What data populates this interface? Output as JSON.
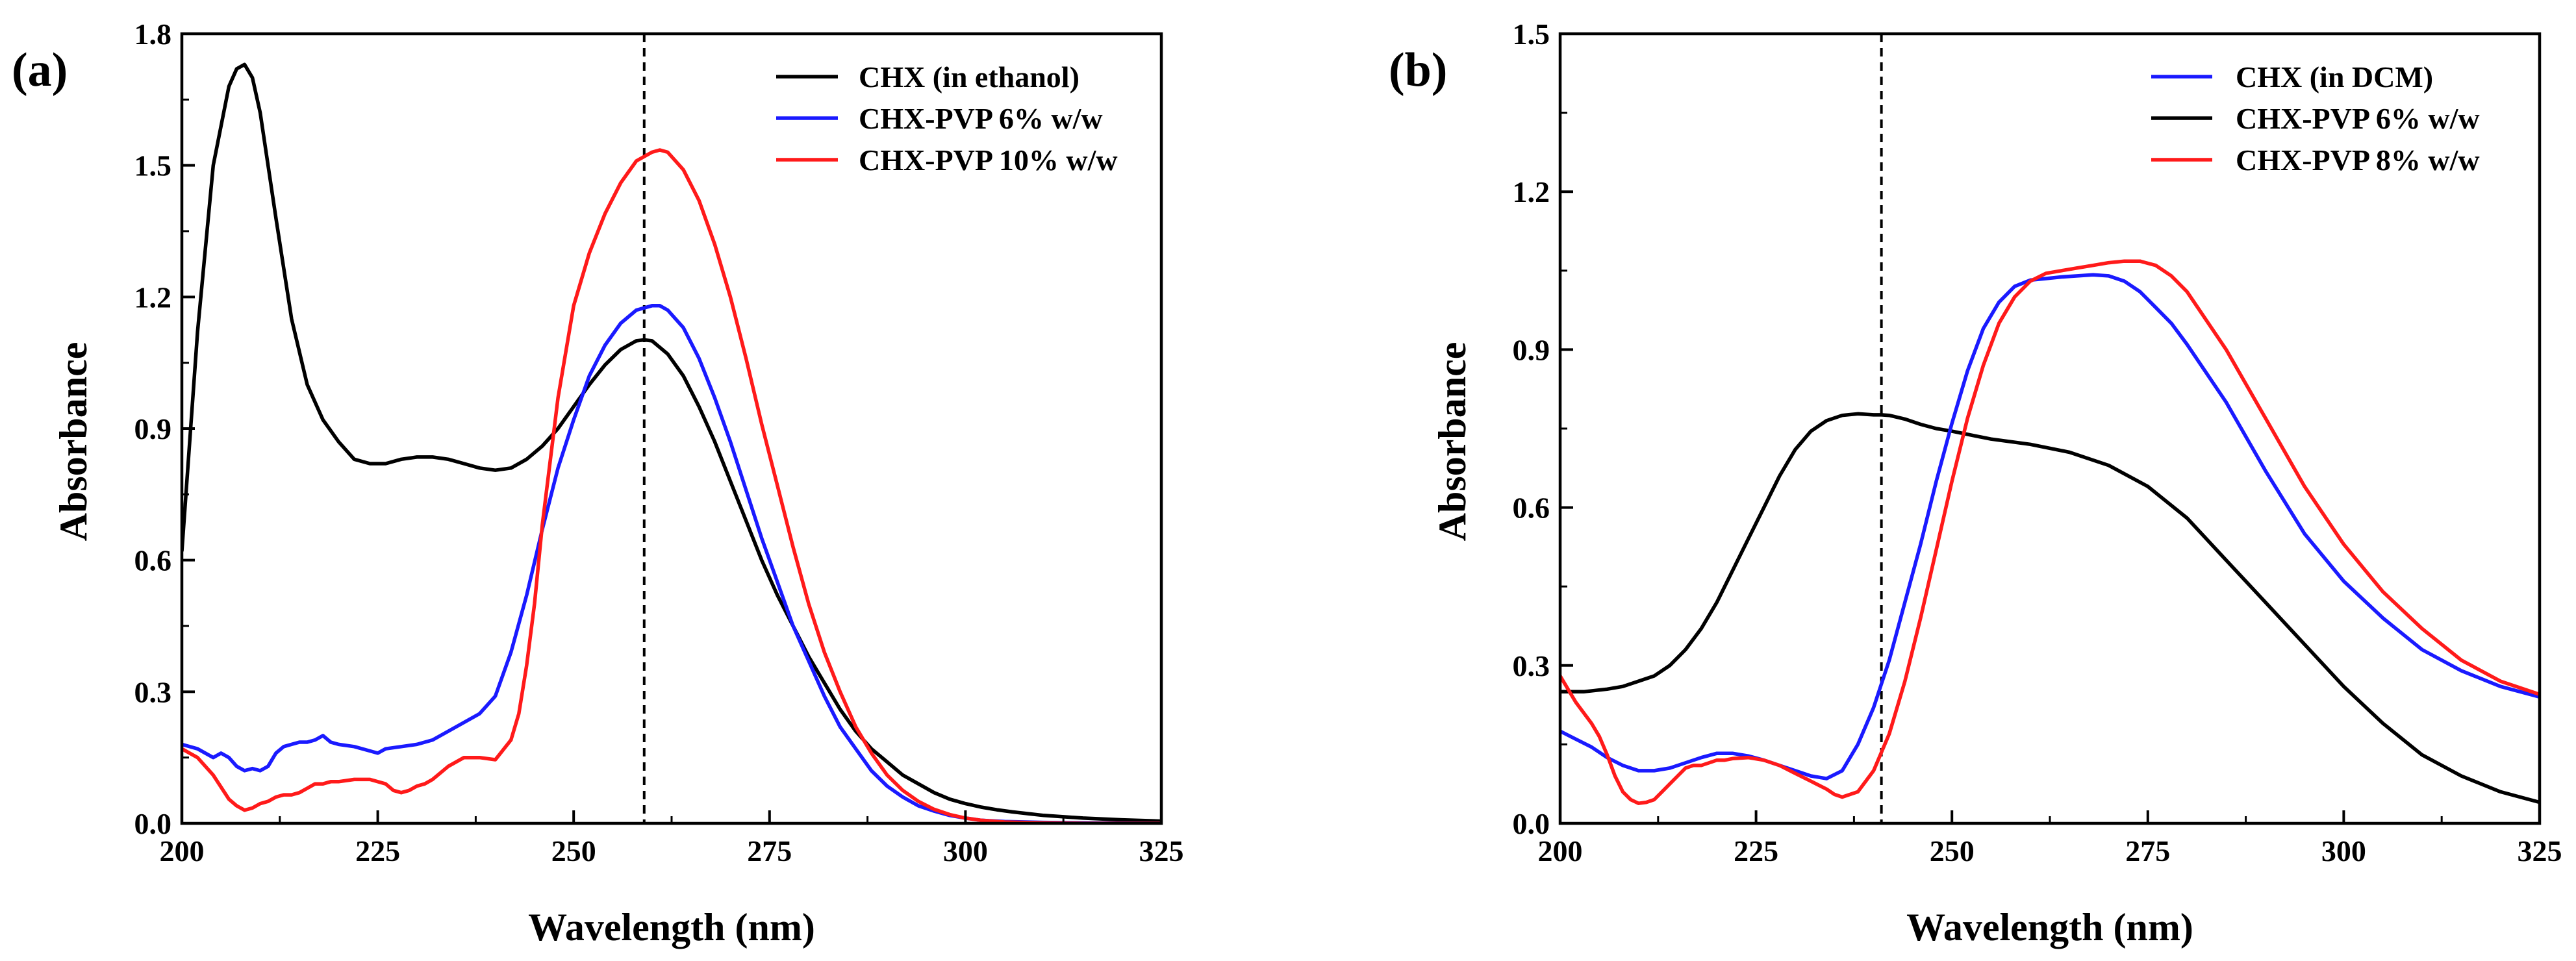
{
  "figure": {
    "description": "Absorbance vs wavelength, two panels"
  },
  "chart_data": [
    {
      "panel": "(a)",
      "type": "line",
      "title": "",
      "xlabel": "Wavelength (nm)",
      "ylabel": "Absorbance",
      "xlim": [
        200,
        325
      ],
      "ylim": [
        0,
        1.8
      ],
      "xticks": [
        200,
        225,
        250,
        275,
        300,
        325
      ],
      "yticks": [
        0.0,
        0.3,
        0.6,
        0.9,
        1.2,
        1.5,
        1.8
      ],
      "ytick_labels": [
        "0.0",
        "0.3",
        "0.6",
        "0.9",
        "1.2",
        "1.5",
        "1.8"
      ],
      "reference_line_x": 259,
      "legend_position": "top-right",
      "series": [
        {
          "name": "CHX (in ethanol)",
          "color": "#000000",
          "x": [
            200,
            202,
            204,
            206,
            207,
            208,
            209,
            210,
            212,
            214,
            216,
            218,
            220,
            222,
            224,
            226,
            228,
            230,
            232,
            234,
            236,
            238,
            240,
            242,
            244,
            246,
            248,
            250,
            252,
            254,
            256,
            258,
            259,
            260,
            262,
            264,
            266,
            268,
            270,
            272,
            274,
            276,
            278,
            280,
            282,
            284,
            286,
            288,
            290,
            292,
            294,
            296,
            298,
            300,
            302,
            304,
            306,
            308,
            310,
            315,
            320,
            325
          ],
          "y": [
            0.62,
            1.12,
            1.5,
            1.68,
            1.72,
            1.73,
            1.7,
            1.62,
            1.38,
            1.15,
            1.0,
            0.92,
            0.87,
            0.83,
            0.82,
            0.82,
            0.83,
            0.835,
            0.835,
            0.83,
            0.82,
            0.81,
            0.805,
            0.81,
            0.83,
            0.86,
            0.9,
            0.95,
            1.0,
            1.045,
            1.08,
            1.1,
            1.102,
            1.1,
            1.07,
            1.02,
            0.95,
            0.87,
            0.78,
            0.69,
            0.6,
            0.52,
            0.45,
            0.38,
            0.32,
            0.26,
            0.21,
            0.17,
            0.14,
            0.11,
            0.09,
            0.07,
            0.055,
            0.045,
            0.037,
            0.031,
            0.026,
            0.022,
            0.018,
            0.012,
            0.008,
            0.005
          ]
        },
        {
          "name": "CHX-PVP 6% w/w",
          "color": "#1a1aff",
          "x": [
            200,
            202,
            204,
            205,
            206,
            207,
            208,
            209,
            210,
            211,
            212,
            213,
            214,
            215,
            216,
            217,
            218,
            219,
            220,
            222,
            224,
            225,
            226,
            228,
            230,
            232,
            234,
            236,
            238,
            240,
            242,
            244,
            246,
            248,
            250,
            252,
            254,
            256,
            258,
            260,
            261,
            262,
            264,
            266,
            268,
            270,
            272,
            274,
            276,
            278,
            280,
            282,
            284,
            286,
            288,
            290,
            292,
            294,
            296,
            298,
            300,
            302,
            305,
            310,
            315,
            325
          ],
          "y": [
            0.18,
            0.17,
            0.15,
            0.16,
            0.15,
            0.13,
            0.12,
            0.125,
            0.12,
            0.13,
            0.16,
            0.175,
            0.18,
            0.185,
            0.185,
            0.19,
            0.2,
            0.185,
            0.18,
            0.175,
            0.165,
            0.16,
            0.17,
            0.175,
            0.18,
            0.19,
            0.21,
            0.23,
            0.25,
            0.29,
            0.39,
            0.52,
            0.67,
            0.81,
            0.92,
            1.02,
            1.09,
            1.14,
            1.17,
            1.18,
            1.18,
            1.17,
            1.13,
            1.06,
            0.97,
            0.87,
            0.76,
            0.65,
            0.55,
            0.45,
            0.37,
            0.29,
            0.22,
            0.17,
            0.12,
            0.085,
            0.06,
            0.04,
            0.028,
            0.018,
            0.012,
            0.007,
            0.004,
            0.002,
            0.001,
            0.0
          ]
        },
        {
          "name": "CHX-PVP 10% w/w",
          "color": "#ff1a1a",
          "x": [
            200,
            202,
            204,
            206,
            207,
            208,
            209,
            210,
            211,
            212,
            213,
            214,
            215,
            216,
            217,
            218,
            219,
            220,
            222,
            224,
            226,
            227,
            228,
            229,
            230,
            231,
            232,
            234,
            236,
            238,
            240,
            242,
            243,
            244,
            245,
            246,
            248,
            250,
            252,
            254,
            256,
            258,
            260,
            261,
            262,
            264,
            266,
            268,
            270,
            272,
            274,
            276,
            278,
            280,
            282,
            284,
            286,
            288,
            290,
            292,
            294,
            296,
            298,
            300,
            302,
            305,
            310,
            315,
            325
          ],
          "y": [
            0.17,
            0.15,
            0.11,
            0.055,
            0.04,
            0.03,
            0.035,
            0.045,
            0.05,
            0.06,
            0.065,
            0.065,
            0.07,
            0.08,
            0.09,
            0.09,
            0.095,
            0.095,
            0.1,
            0.1,
            0.09,
            0.075,
            0.07,
            0.075,
            0.085,
            0.09,
            0.1,
            0.13,
            0.15,
            0.15,
            0.145,
            0.19,
            0.25,
            0.36,
            0.5,
            0.68,
            0.97,
            1.18,
            1.3,
            1.39,
            1.46,
            1.51,
            1.53,
            1.535,
            1.53,
            1.49,
            1.42,
            1.32,
            1.2,
            1.06,
            0.91,
            0.77,
            0.63,
            0.5,
            0.39,
            0.3,
            0.22,
            0.16,
            0.11,
            0.075,
            0.05,
            0.032,
            0.02,
            0.012,
            0.007,
            0.003,
            0.001,
            0.0,
            0.0
          ]
        }
      ]
    },
    {
      "panel": "(b)",
      "type": "line",
      "title": "",
      "xlabel": "Wavelength (nm)",
      "ylabel": "Absorbance",
      "xlim": [
        200,
        325
      ],
      "ylim": [
        0,
        1.5
      ],
      "xticks": [
        200,
        225,
        250,
        275,
        300,
        325
      ],
      "yticks": [
        0.0,
        0.3,
        0.6,
        0.9,
        1.2,
        1.5
      ],
      "ytick_labels": [
        "0.0",
        "0.3",
        "0.6",
        "0.9",
        "1.2",
        "1.5"
      ],
      "reference_line_x": 241,
      "legend_position": "top-right",
      "series": [
        {
          "name": "CHX (in DCM)",
          "color": "#1a1aff",
          "x": [
            200,
            202,
            204,
            206,
            208,
            210,
            212,
            214,
            216,
            218,
            220,
            222,
            224,
            226,
            228,
            230,
            232,
            234,
            236,
            238,
            240,
            242,
            244,
            246,
            248,
            250,
            252,
            254,
            256,
            258,
            260,
            262,
            264,
            266,
            268,
            270,
            272,
            274,
            276,
            278,
            280,
            285,
            290,
            295,
            300,
            305,
            310,
            315,
            320,
            325
          ],
          "y": [
            0.175,
            0.16,
            0.145,
            0.125,
            0.11,
            0.1,
            0.1,
            0.105,
            0.115,
            0.125,
            0.133,
            0.133,
            0.128,
            0.12,
            0.11,
            0.1,
            0.09,
            0.085,
            0.1,
            0.15,
            0.22,
            0.31,
            0.42,
            0.53,
            0.65,
            0.76,
            0.86,
            0.94,
            0.99,
            1.02,
            1.032,
            1.035,
            1.038,
            1.04,
            1.042,
            1.04,
            1.03,
            1.01,
            0.98,
            0.95,
            0.91,
            0.8,
            0.67,
            0.55,
            0.46,
            0.39,
            0.33,
            0.29,
            0.26,
            0.24
          ]
        },
        {
          "name": "CHX-PVP 6% w/w",
          "color": "#000000",
          "x": [
            200,
            203,
            206,
            208,
            210,
            212,
            214,
            216,
            218,
            220,
            222,
            224,
            226,
            228,
            230,
            232,
            234,
            236,
            238,
            240,
            241,
            242,
            244,
            246,
            248,
            250,
            255,
            260,
            265,
            270,
            275,
            280,
            285,
            290,
            295,
            300,
            305,
            310,
            315,
            320,
            325
          ],
          "y": [
            0.25,
            0.25,
            0.255,
            0.26,
            0.27,
            0.28,
            0.3,
            0.33,
            0.37,
            0.42,
            0.48,
            0.54,
            0.6,
            0.66,
            0.71,
            0.745,
            0.765,
            0.775,
            0.778,
            0.776,
            0.776,
            0.775,
            0.768,
            0.758,
            0.75,
            0.745,
            0.73,
            0.72,
            0.705,
            0.68,
            0.64,
            0.58,
            0.5,
            0.42,
            0.34,
            0.26,
            0.19,
            0.13,
            0.09,
            0.06,
            0.04
          ]
        },
        {
          "name": "CHX-PVP 8% w/w",
          "color": "#ff1a1a",
          "x": [
            200,
            202,
            204,
            205,
            206,
            207,
            208,
            209,
            210,
            211,
            212,
            213,
            214,
            215,
            216,
            217,
            218,
            219,
            220,
            221,
            222,
            224,
            226,
            228,
            230,
            232,
            234,
            235,
            236,
            238,
            240,
            242,
            244,
            246,
            248,
            250,
            252,
            254,
            256,
            258,
            260,
            262,
            264,
            266,
            268,
            270,
            272,
            274,
            276,
            278,
            280,
            285,
            290,
            295,
            300,
            305,
            310,
            315,
            320,
            325
          ],
          "y": [
            0.28,
            0.23,
            0.19,
            0.165,
            0.13,
            0.09,
            0.06,
            0.045,
            0.038,
            0.04,
            0.045,
            0.06,
            0.075,
            0.09,
            0.105,
            0.11,
            0.11,
            0.115,
            0.12,
            0.12,
            0.123,
            0.125,
            0.12,
            0.11,
            0.095,
            0.08,
            0.065,
            0.055,
            0.05,
            0.06,
            0.1,
            0.17,
            0.27,
            0.39,
            0.52,
            0.65,
            0.77,
            0.87,
            0.95,
            1.0,
            1.03,
            1.045,
            1.05,
            1.055,
            1.06,
            1.065,
            1.068,
            1.068,
            1.06,
            1.04,
            1.01,
            0.9,
            0.77,
            0.64,
            0.53,
            0.44,
            0.37,
            0.31,
            0.27,
            0.245
          ]
        }
      ]
    }
  ]
}
